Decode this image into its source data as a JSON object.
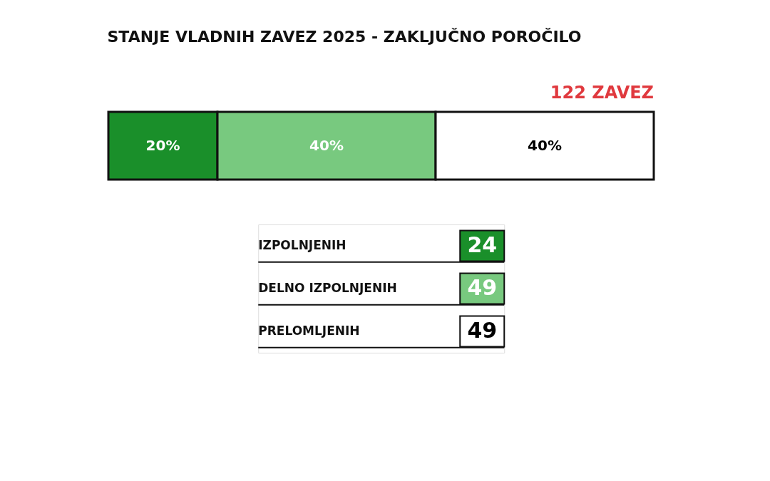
{
  "chart_data": [
    {
      "type": "bar",
      "title": "STANJE VLADNIH ZAVEZ 2025 - ZAKLJUČNO POROČILO",
      "annotations": [
        "122 ZAVEZ"
      ],
      "orientation": "horizontal",
      "stacked": true,
      "categories": [
        null
      ],
      "tick_labels": false,
      "series": [
        {
          "color": "#1a8f2a",
          "values": [
            20
          ],
          "value_labels": [
            "20%"
          ]
        },
        {
          "color": "#78c97f",
          "values": [
            40
          ],
          "value_labels": [
            "40%"
          ]
        },
        {
          "color": "#ffffff",
          "values": [
            40
          ],
          "value_labels": [
            "40%"
          ]
        }
      ]
    },
    {
      "type": "other",
      "categories": [
        "IZPOLNJENIH",
        "DELNO IZPOLNJENIH",
        "PRELOMLJENIH"
      ],
      "values": [
        24,
        49,
        49
      ],
      "colors": [
        "#1a8f2a",
        "#78c97f",
        "#ffffff"
      ],
      "data_labels": true
    }
  ]
}
